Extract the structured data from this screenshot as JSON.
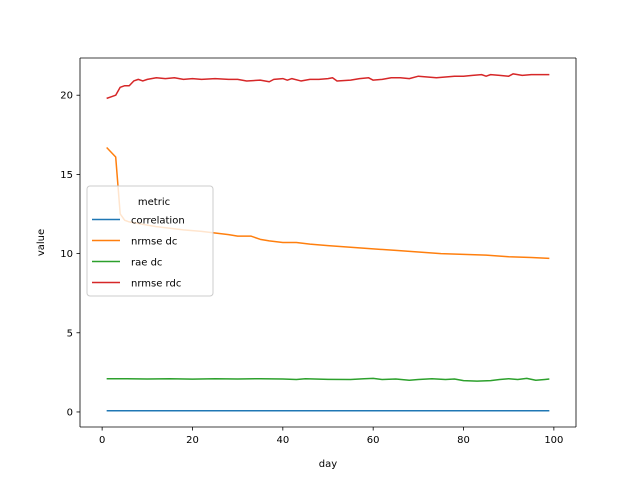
{
  "chart_data": {
    "type": "line",
    "xlabel": "day",
    "ylabel": "value",
    "xlim": [
      -4.9,
      104.9
    ],
    "ylim": [
      -0.95,
      22.35
    ],
    "xticks": [
      0,
      20,
      40,
      60,
      80,
      100
    ],
    "yticks": [
      0,
      5,
      10,
      15,
      20
    ],
    "grid": false,
    "legend": {
      "title": "metric",
      "placement": "center-left"
    },
    "series": [
      {
        "name": "correlation",
        "color": "#1f77b4",
        "points": [
          [
            1,
            0.08
          ],
          [
            10,
            0.08
          ],
          [
            20,
            0.08
          ],
          [
            30,
            0.08
          ],
          [
            40,
            0.08
          ],
          [
            50,
            0.08
          ],
          [
            60,
            0.08
          ],
          [
            70,
            0.08
          ],
          [
            80,
            0.08
          ],
          [
            90,
            0.08
          ],
          [
            99,
            0.08
          ]
        ]
      },
      {
        "name": "nrmse dc",
        "color": "#ff7f0e",
        "points": [
          [
            1,
            16.7
          ],
          [
            2,
            16.4
          ],
          [
            3,
            16.1
          ],
          [
            4,
            12.5
          ],
          [
            5,
            12.1
          ],
          [
            6,
            12.0
          ],
          [
            8,
            11.9
          ],
          [
            10,
            11.8
          ],
          [
            12,
            11.7
          ],
          [
            15,
            11.6
          ],
          [
            18,
            11.5
          ],
          [
            22,
            11.4
          ],
          [
            25,
            11.3
          ],
          [
            28,
            11.2
          ],
          [
            30,
            11.1
          ],
          [
            33,
            11.1
          ],
          [
            35,
            10.9
          ],
          [
            37,
            10.8
          ],
          [
            40,
            10.7
          ],
          [
            43,
            10.7
          ],
          [
            46,
            10.6
          ],
          [
            50,
            10.5
          ],
          [
            55,
            10.4
          ],
          [
            60,
            10.3
          ],
          [
            65,
            10.2
          ],
          [
            70,
            10.1
          ],
          [
            75,
            10.0
          ],
          [
            80,
            9.95
          ],
          [
            85,
            9.9
          ],
          [
            90,
            9.8
          ],
          [
            95,
            9.75
          ],
          [
            99,
            9.7
          ]
        ]
      },
      {
        "name": "rae dc",
        "color": "#2ca02c",
        "points": [
          [
            1,
            2.1
          ],
          [
            5,
            2.1
          ],
          [
            10,
            2.08
          ],
          [
            15,
            2.1
          ],
          [
            20,
            2.07
          ],
          [
            25,
            2.1
          ],
          [
            30,
            2.08
          ],
          [
            35,
            2.1
          ],
          [
            40,
            2.08
          ],
          [
            43,
            2.05
          ],
          [
            45,
            2.1
          ],
          [
            50,
            2.06
          ],
          [
            55,
            2.05
          ],
          [
            58,
            2.1
          ],
          [
            60,
            2.12
          ],
          [
            62,
            2.05
          ],
          [
            65,
            2.08
          ],
          [
            68,
            2.0
          ],
          [
            70,
            2.05
          ],
          [
            73,
            2.1
          ],
          [
            76,
            2.05
          ],
          [
            78,
            2.08
          ],
          [
            80,
            1.98
          ],
          [
            83,
            1.95
          ],
          [
            86,
            1.98
          ],
          [
            88,
            2.05
          ],
          [
            90,
            2.1
          ],
          [
            92,
            2.05
          ],
          [
            94,
            2.12
          ],
          [
            96,
            2.0
          ],
          [
            98,
            2.05
          ],
          [
            99,
            2.08
          ]
        ]
      },
      {
        "name": "nrmse rdc",
        "color": "#d62728",
        "points": [
          [
            1,
            19.8
          ],
          [
            2,
            19.9
          ],
          [
            3,
            20.0
          ],
          [
            4,
            20.5
          ],
          [
            5,
            20.6
          ],
          [
            6,
            20.6
          ],
          [
            7,
            20.9
          ],
          [
            8,
            21.0
          ],
          [
            9,
            20.9
          ],
          [
            10,
            21.0
          ],
          [
            12,
            21.1
          ],
          [
            14,
            21.05
          ],
          [
            16,
            21.1
          ],
          [
            18,
            21.0
          ],
          [
            20,
            21.05
          ],
          [
            22,
            21.0
          ],
          [
            25,
            21.05
          ],
          [
            28,
            21.0
          ],
          [
            30,
            21.0
          ],
          [
            32,
            20.9
          ],
          [
            35,
            20.95
          ],
          [
            37,
            20.85
          ],
          [
            38,
            21.0
          ],
          [
            40,
            21.05
          ],
          [
            41,
            20.95
          ],
          [
            42,
            21.05
          ],
          [
            44,
            20.9
          ],
          [
            46,
            21.0
          ],
          [
            48,
            21.0
          ],
          [
            50,
            21.05
          ],
          [
            51,
            21.1
          ],
          [
            52,
            20.9
          ],
          [
            55,
            20.95
          ],
          [
            57,
            21.05
          ],
          [
            59,
            21.1
          ],
          [
            60,
            20.95
          ],
          [
            62,
            21.0
          ],
          [
            64,
            21.1
          ],
          [
            66,
            21.1
          ],
          [
            68,
            21.05
          ],
          [
            70,
            21.2
          ],
          [
            72,
            21.15
          ],
          [
            74,
            21.1
          ],
          [
            76,
            21.15
          ],
          [
            78,
            21.2
          ],
          [
            80,
            21.2
          ],
          [
            82,
            21.25
          ],
          [
            84,
            21.3
          ],
          [
            85,
            21.2
          ],
          [
            86,
            21.3
          ],
          [
            88,
            21.25
          ],
          [
            90,
            21.2
          ],
          [
            91,
            21.35
          ],
          [
            93,
            21.25
          ],
          [
            95,
            21.3
          ],
          [
            97,
            21.3
          ],
          [
            99,
            21.3
          ]
        ]
      }
    ]
  }
}
